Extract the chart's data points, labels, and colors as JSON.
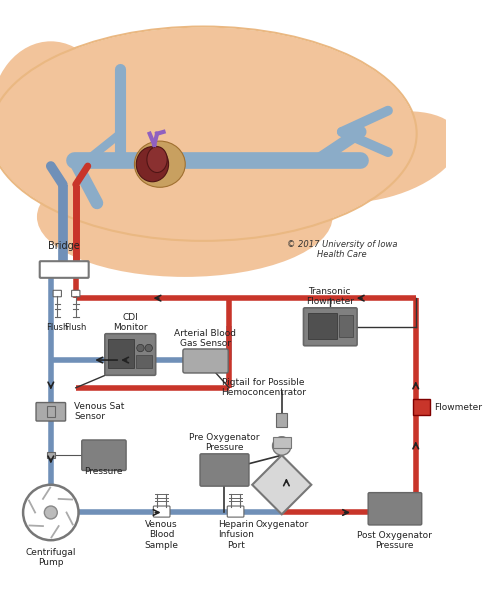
{
  "bg_color": "#ffffff",
  "skin1": "#f2c49b",
  "skin2": "#eab882",
  "blue_vessel": "#8bacc8",
  "red_circuit": "#c8352a",
  "blue_circuit": "#7090b8",
  "dark": "#222222",
  "gray1": "#808080",
  "gray2": "#666666",
  "gray3": "#aaaaaa",
  "copyright": "© 2017 University of Iowa\nHealth Care",
  "labels": {
    "bridge": "Bridge",
    "flush1": "Flush",
    "flush2": "Flush",
    "cdi": "CDI\nMonitor",
    "arterial_blood": "Arterial Blood\nGas Sensor",
    "transonic": "Transonic\nFlowmeter",
    "venous_sat": "Venous Sat\nSensor",
    "pigtail": "Pigtail for Possible\nHemoconcentrator",
    "flowmeter": "Flowmeter",
    "pre_oxy": "Pre Oxygenator\nPressure",
    "pressure": "Pressure",
    "centrifugal": "Centrifugal\nPump",
    "venous_blood": "Venous\nBlood\nSample",
    "heparin": "Heparin\nInfusion\nPort",
    "oxygenator": "Oxygenator",
    "post_oxy": "Post Oxygenator\nPressure"
  }
}
